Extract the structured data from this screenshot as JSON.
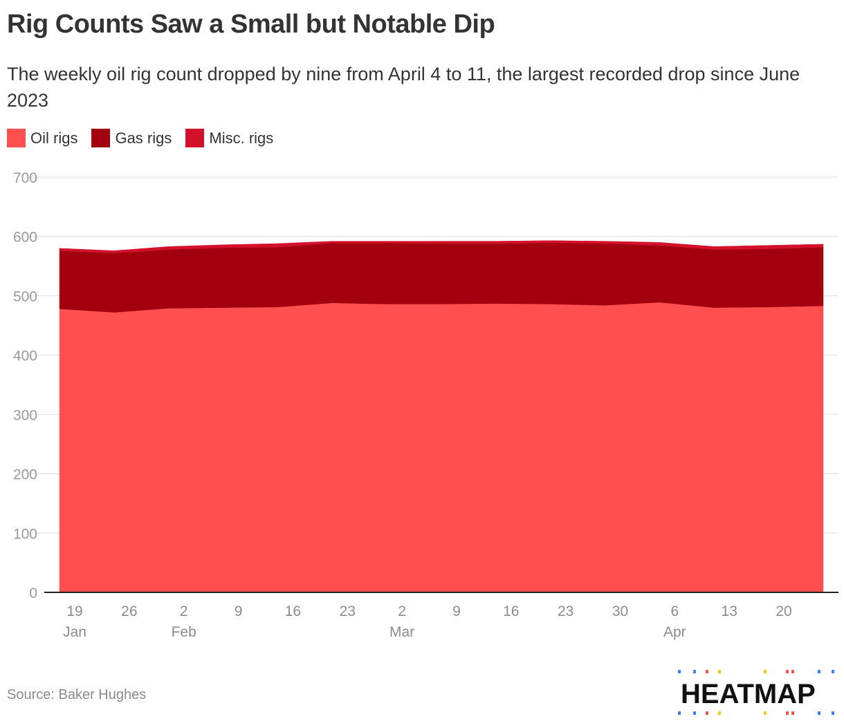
{
  "title": "Rig Counts Saw a Small but Notable Dip",
  "subtitle": "The weekly oil rig count dropped by nine from April 4 to 11, the largest recorded drop since June 2023",
  "source": "Source: Baker Hughes",
  "brand": "HEATMAP",
  "legend": [
    {
      "label": "Oil rigs",
      "color": "#ff4f4f"
    },
    {
      "label": "Gas rigs",
      "color": "#a3000f"
    },
    {
      "label": "Misc. rigs",
      "color": "#d4112a"
    }
  ],
  "chart_data": {
    "type": "area",
    "stacked": true,
    "title": "Rig Counts Saw a Small but Notable Dip",
    "xlabel": "",
    "ylabel": "",
    "ylim": [
      0,
      700
    ],
    "yticks": [
      0,
      100,
      200,
      300,
      400,
      500,
      600,
      700
    ],
    "x_tick_labels": [
      {
        "day": "19",
        "month": "Jan"
      },
      {
        "day": "26",
        "month": ""
      },
      {
        "day": "2",
        "month": "Feb"
      },
      {
        "day": "9",
        "month": ""
      },
      {
        "day": "16",
        "month": ""
      },
      {
        "day": "23",
        "month": ""
      },
      {
        "day": "2",
        "month": "Mar"
      },
      {
        "day": "9",
        "month": ""
      },
      {
        "day": "16",
        "month": ""
      },
      {
        "day": "23",
        "month": ""
      },
      {
        "day": "30",
        "month": ""
      },
      {
        "day": "6",
        "month": "Apr"
      },
      {
        "day": "13",
        "month": ""
      },
      {
        "day": "20",
        "month": ""
      }
    ],
    "x": [
      "2025-01-17",
      "2025-01-24",
      "2025-01-31",
      "2025-02-07",
      "2025-02-14",
      "2025-02-21",
      "2025-02-28",
      "2025-03-07",
      "2025-03-14",
      "2025-03-21",
      "2025-03-28",
      "2025-04-04",
      "2025-04-11",
      "2025-04-17",
      "2025-04-25"
    ],
    "series": [
      {
        "name": "Oil rigs",
        "color": "#ff4f4f",
        "values": [
          478,
          472,
          479,
          480,
          481,
          488,
          486,
          486,
          487,
          486,
          484,
          489,
          480,
          481,
          483
        ]
      },
      {
        "name": "Gas rigs",
        "color": "#a3000f",
        "values": [
          98,
          100,
          99,
          101,
          101,
          101,
          103,
          102,
          101,
          103,
          104,
          96,
          98,
          98,
          99
        ]
      },
      {
        "name": "Misc. rigs",
        "color": "#d4112a",
        "values": [
          4,
          4,
          5,
          5,
          6,
          3,
          3,
          4,
          4,
          4,
          4,
          5,
          5,
          6,
          5
        ]
      }
    ]
  }
}
